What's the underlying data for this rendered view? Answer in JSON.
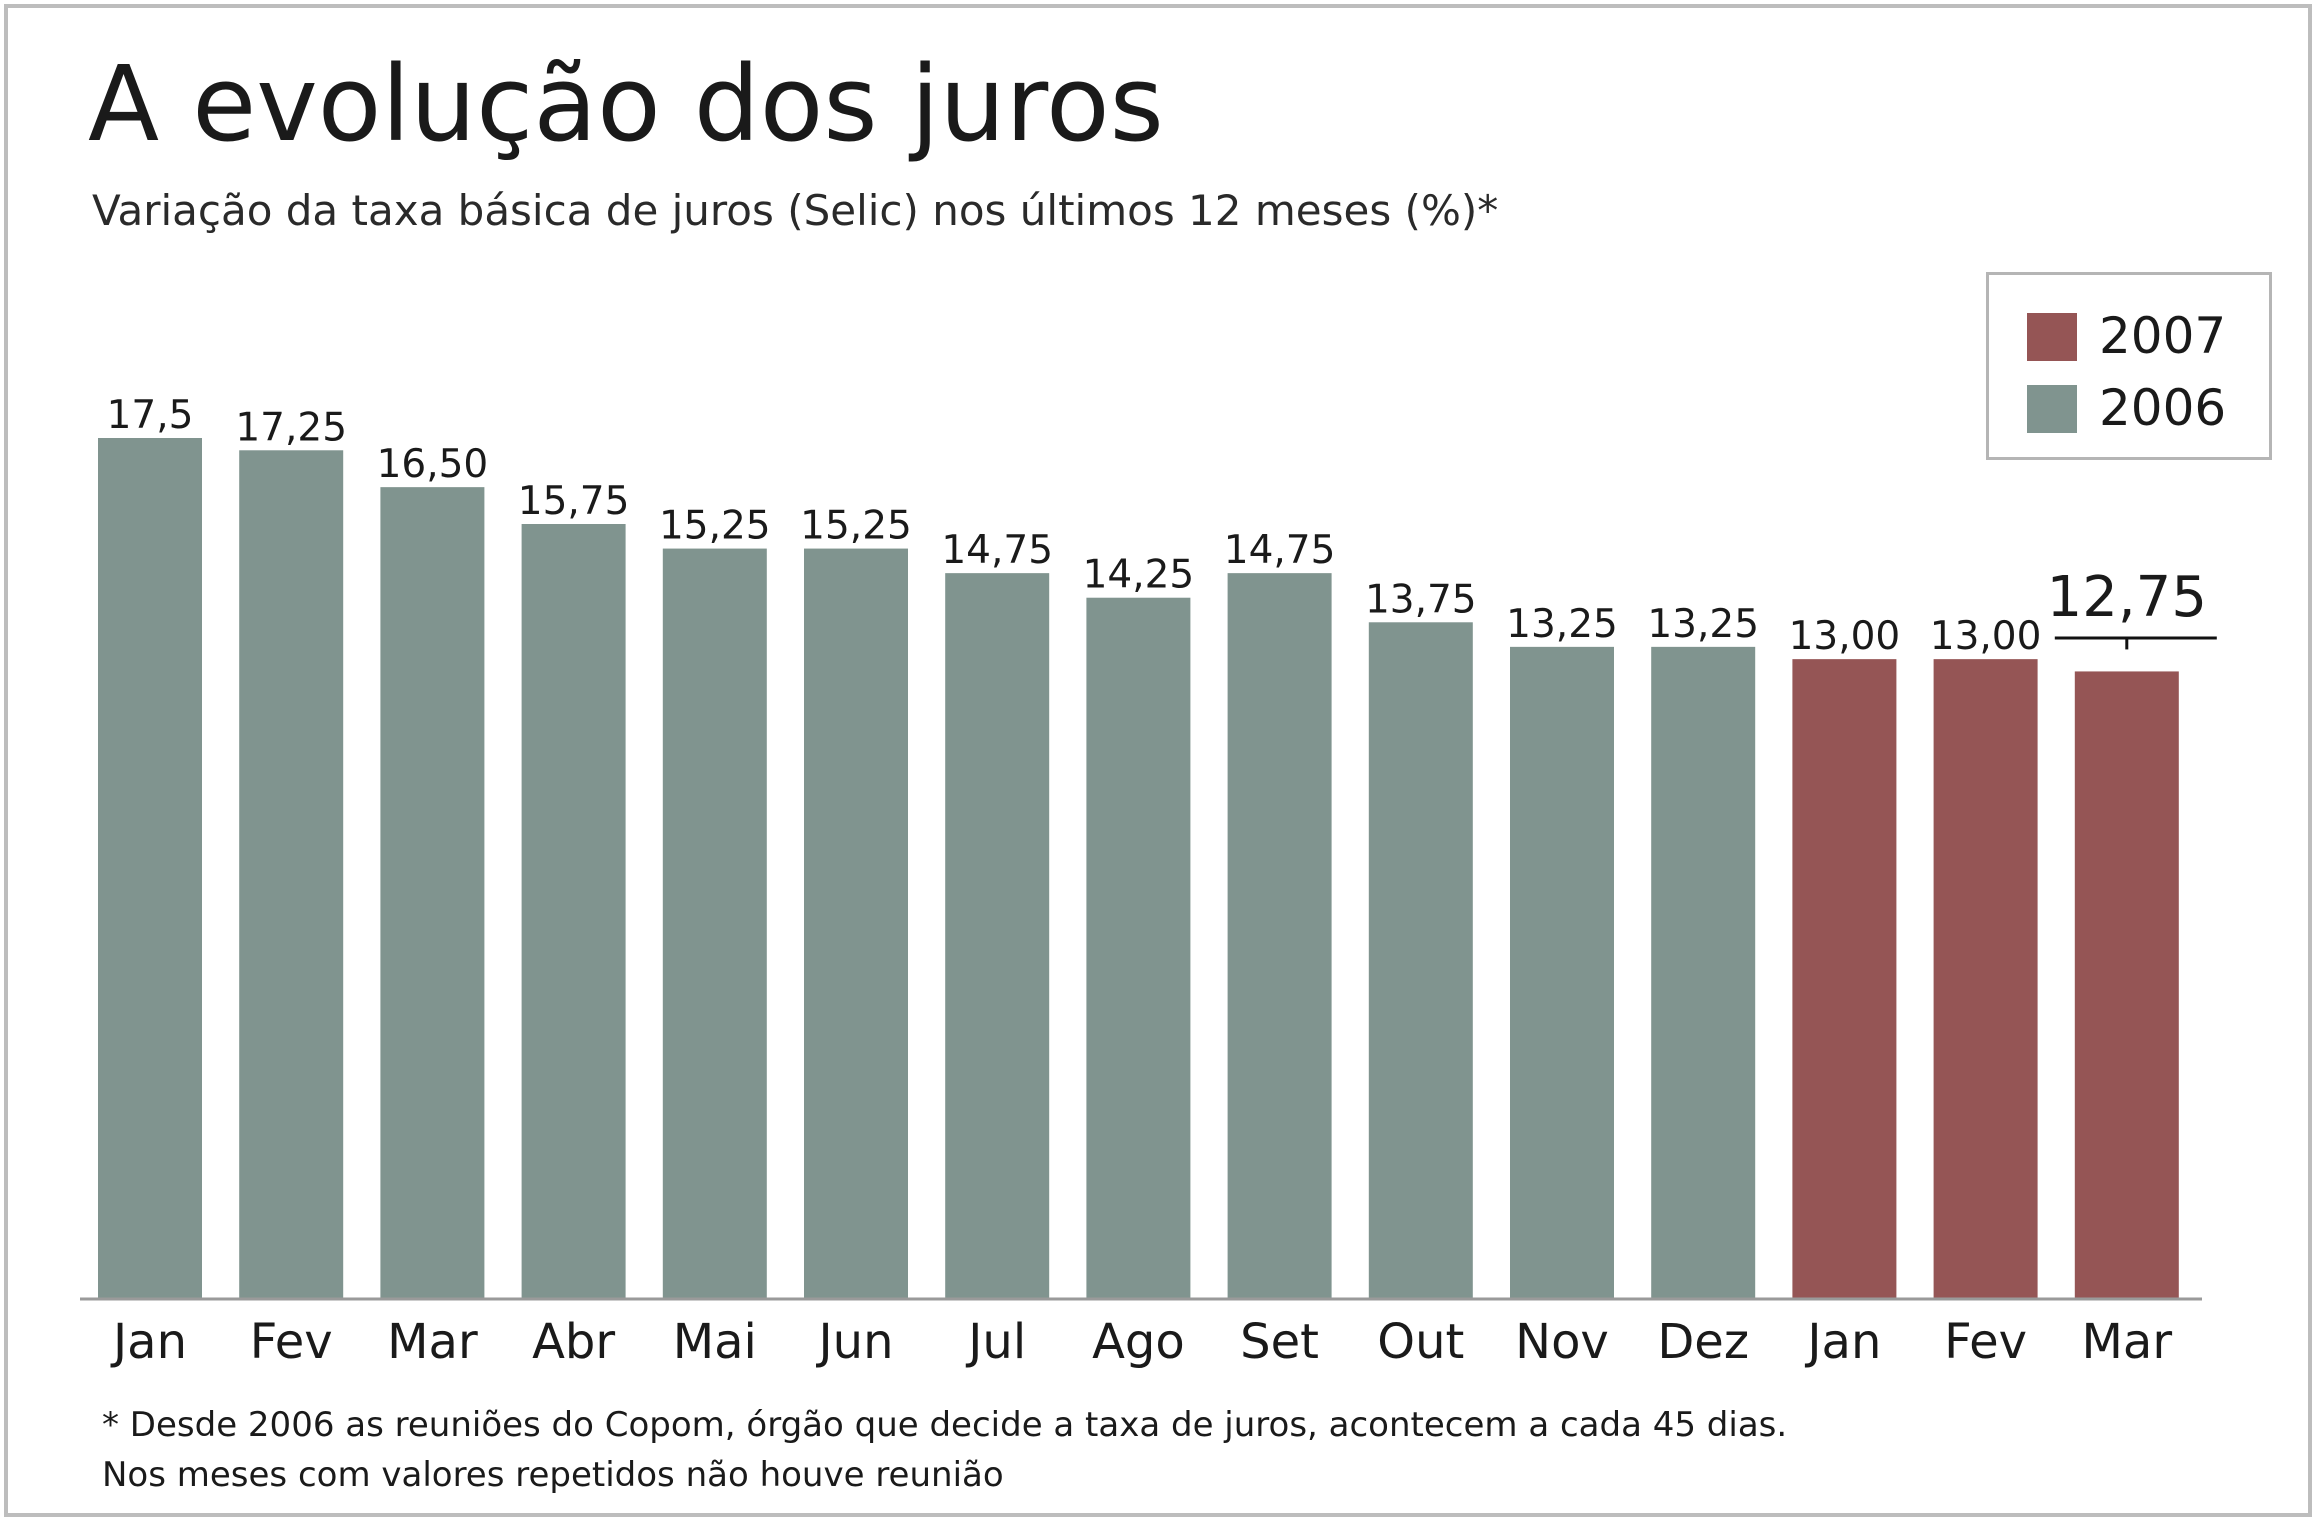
{
  "chart_data": {
    "type": "bar",
    "title": "A evolução dos juros",
    "subtitle": "Variação da taxa básica de juros (Selic) nos últimos 12 meses  (%)*",
    "xlabel": "",
    "ylabel": "",
    "ylim": [
      0,
      17.5
    ],
    "categories": [
      "Jan",
      "Fev",
      "Mar",
      "Abr",
      "Mai",
      "Jun",
      "Jul",
      "Ago",
      "Set",
      "Out",
      "Nov",
      "Dez",
      "Jan",
      "Fev",
      "Mar"
    ],
    "values": [
      17.5,
      17.25,
      16.5,
      15.75,
      15.25,
      15.25,
      14.75,
      14.25,
      14.75,
      13.75,
      13.25,
      13.25,
      13.0,
      13.0,
      12.75
    ],
    "value_labels": [
      "17,5",
      "17,25",
      "16,50",
      "15,75",
      "15,25",
      "15,25",
      "14,75",
      "14,25",
      "14,75",
      "13,75",
      "13,25",
      "13,25",
      "13,00",
      "13,00",
      "12,75"
    ],
    "series_year": [
      "2006",
      "2006",
      "2006",
      "2006",
      "2006",
      "2006",
      "2006",
      "2006",
      "2006",
      "2006",
      "2006",
      "2006",
      "2007",
      "2007",
      "2007"
    ],
    "legend": [
      {
        "name": "2007",
        "color": "#955555"
      },
      {
        "name": "2006",
        "color": "#80948f"
      }
    ],
    "legend_position": "top-right",
    "grid": false,
    "highlight": {
      "index": 14,
      "label": "12,75"
    }
  },
  "footnote": {
    "line1": "* Desde 2006 as reuniões do Copom, órgão que decide a taxa de juros, acontecem a cada 45 dias.",
    "line2": "Nos meses com valores repetidos não houve reunião"
  }
}
